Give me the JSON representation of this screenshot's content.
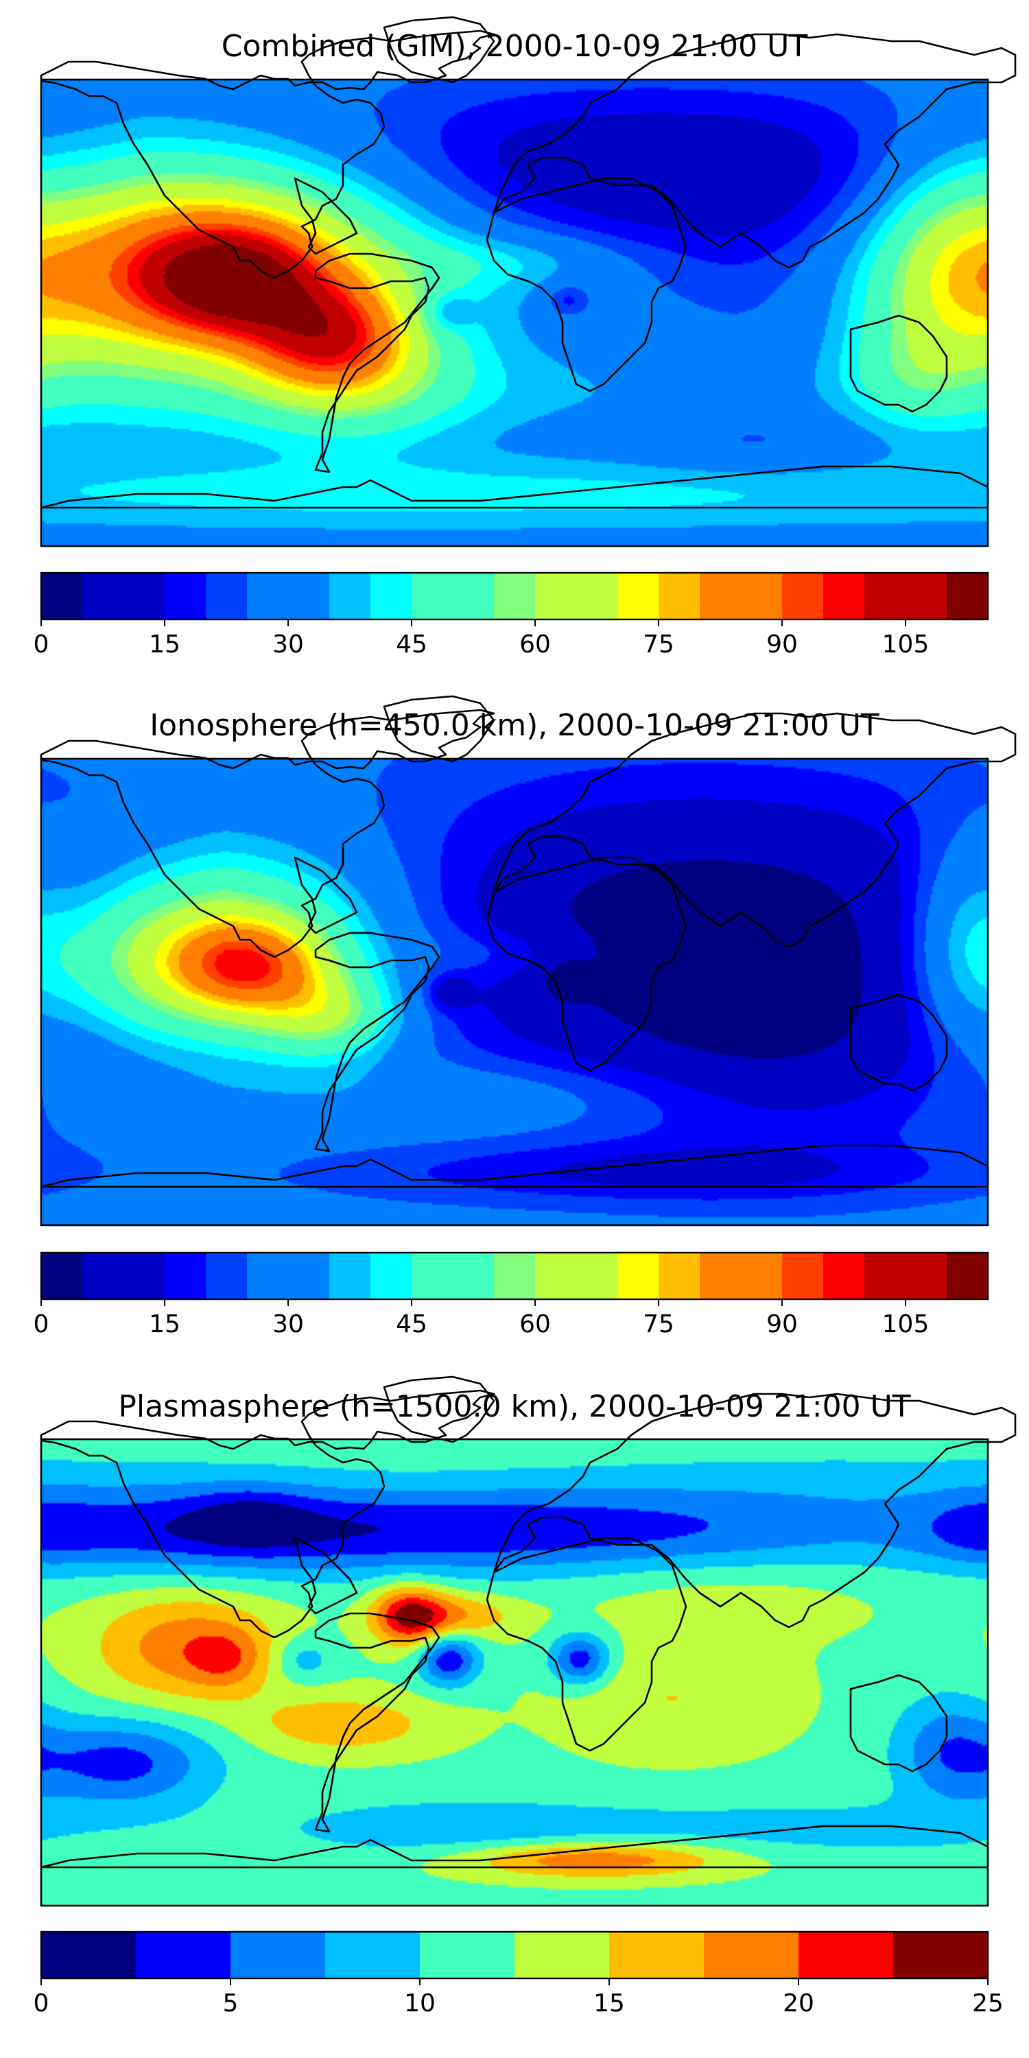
{
  "panels": [
    {
      "id": "combined",
      "title": "Combined (GIM), 2000-10-09 21:00 UT",
      "field_type": "map",
      "colorbar": {
        "min": 0,
        "max": 115,
        "step": 5,
        "ticks": [
          0,
          15,
          30,
          45,
          60,
          75,
          90,
          105
        ],
        "tick_labels": [
          "0",
          "15",
          "30",
          "45",
          "60",
          "75",
          "90",
          "105"
        ]
      },
      "background_level": 30,
      "blobs": [
        {
          "lon": -140,
          "lat": 12,
          "sx": 60,
          "sy": 30,
          "a": 45
        },
        {
          "lon": -108,
          "lat": 12,
          "sx": 22,
          "sy": 14,
          "a": 40
        },
        {
          "lon": -70,
          "lat": -8,
          "sx": 22,
          "sy": 15,
          "a": 38
        },
        {
          "lon": -95,
          "lat": 30,
          "sx": 55,
          "sy": 25,
          "a": 25
        },
        {
          "lon": -60,
          "lat": -25,
          "sx": 30,
          "sy": 18,
          "a": 20
        },
        {
          "lon": 40,
          "lat": 55,
          "sx": 100,
          "sy": 25,
          "a": -22
        },
        {
          "lon": 100,
          "lat": 10,
          "sx": 30,
          "sy": 35,
          "a": -8
        },
        {
          "lon": -25,
          "lat": 0,
          "sx": 6,
          "sy": 5,
          "a": -12
        },
        {
          "lon": 20,
          "lat": 5,
          "sx": 6,
          "sy": 5,
          "a": -12
        },
        {
          "lon": 0,
          "lat": 20,
          "sx": 30,
          "sy": 8,
          "a": 10
        },
        {
          "lon": 0,
          "lat": -30,
          "sx": 100,
          "sy": 12,
          "a": 5
        },
        {
          "lon": 150,
          "lat": -25,
          "sx": 20,
          "sy": 15,
          "a": 12
        },
        {
          "lon": 90,
          "lat": -50,
          "sx": 30,
          "sy": 8,
          "a": -6
        },
        {
          "lon": -10,
          "lat": -70,
          "sx": 200,
          "sy": 10,
          "a": 12
        },
        {
          "lon": 165,
          "lat": 20,
          "sx": 20,
          "sy": 30,
          "a": 15
        }
      ]
    },
    {
      "id": "ionosphere",
      "title": "Ionosphere  (h=450.0 km), 2000-10-09 21:00 UT",
      "field_type": "map",
      "colorbar": {
        "min": 0,
        "max": 115,
        "step": 5,
        "ticks": [
          0,
          15,
          30,
          45,
          60,
          75,
          90,
          105
        ],
        "tick_labels": [
          "0",
          "15",
          "30",
          "45",
          "60",
          "75",
          "90",
          "105"
        ]
      },
      "background_level": 28,
      "blobs": [
        {
          "lon": -120,
          "lat": 10,
          "sx": 45,
          "sy": 22,
          "a": 40
        },
        {
          "lon": -100,
          "lat": 10,
          "sx": 20,
          "sy": 12,
          "a": 30
        },
        {
          "lon": -70,
          "lat": -10,
          "sx": 20,
          "sy": 12,
          "a": 25
        },
        {
          "lon": -100,
          "lat": 35,
          "sx": 55,
          "sy": 25,
          "a": 15
        },
        {
          "lon": 70,
          "lat": 25,
          "sx": 100,
          "sy": 40,
          "a": -28
        },
        {
          "lon": 100,
          "lat": -25,
          "sx": 50,
          "sy": 30,
          "a": -12
        },
        {
          "lon": -25,
          "lat": 0,
          "sx": 6,
          "sy": 5,
          "a": -12
        },
        {
          "lon": 20,
          "lat": 5,
          "sx": 6,
          "sy": 5,
          "a": -12
        },
        {
          "lon": 0,
          "lat": 15,
          "sx": 25,
          "sy": 8,
          "a": 8
        },
        {
          "lon": 50,
          "lat": -70,
          "sx": 80,
          "sy": 8,
          "a": -12
        },
        {
          "lon": -20,
          "lat": -40,
          "sx": 80,
          "sy": 10,
          "a": 8
        },
        {
          "lon": 170,
          "lat": 20,
          "sx": 15,
          "sy": 30,
          "a": 15
        }
      ]
    },
    {
      "id": "plasmasphere",
      "title": "Plasmasphere (h=1500.0 km), 2000-10-09 21:00 UT",
      "field_type": "map",
      "colorbar": {
        "min": 0,
        "max": 25,
        "step": 2.5,
        "ticks": [
          0,
          5,
          10,
          15,
          20,
          25
        ],
        "tick_labels": [
          "0",
          "5",
          "10",
          "15",
          "20",
          "25"
        ]
      },
      "background_level": 12,
      "blobs": [
        {
          "lon": -20,
          "lat": 55,
          "sx": 130,
          "sy": 12,
          "a": -9
        },
        {
          "lon": -120,
          "lat": 55,
          "sx": 40,
          "sy": 12,
          "a": -3
        },
        {
          "lon": -100,
          "lat": 60,
          "sx": 15,
          "sy": 8,
          "a": -3
        },
        {
          "lon": 175,
          "lat": 55,
          "sx": 20,
          "sy": 10,
          "a": -4
        },
        {
          "lon": 140,
          "lat": 75,
          "sx": 100,
          "sy": 10,
          "a": -2
        },
        {
          "lon": -125,
          "lat": 10,
          "sx": 25,
          "sy": 15,
          "a": 7
        },
        {
          "lon": -110,
          "lat": 5,
          "sx": 10,
          "sy": 8,
          "a": 4
        },
        {
          "lon": -40,
          "lat": 22,
          "sx": 10,
          "sy": 8,
          "a": 11
        },
        {
          "lon": -20,
          "lat": 22,
          "sx": 15,
          "sy": 6,
          "a": 5
        },
        {
          "lon": -65,
          "lat": -20,
          "sx": 25,
          "sy": 8,
          "a": 5
        },
        {
          "lon": -25,
          "lat": 5,
          "sx": 8,
          "sy": 7,
          "a": -9
        },
        {
          "lon": 25,
          "lat": 5,
          "sx": 8,
          "sy": 7,
          "a": -9
        },
        {
          "lon": -80,
          "lat": 5,
          "sx": 8,
          "sy": 6,
          "a": -4
        },
        {
          "lon": 165,
          "lat": -30,
          "sx": 15,
          "sy": 15,
          "a": -6
        },
        {
          "lon": -150,
          "lat": -35,
          "sx": 25,
          "sy": 12,
          "a": -8
        },
        {
          "lon": 30,
          "lat": -72,
          "sx": 35,
          "sy": 5,
          "a": 8
        },
        {
          "lon": -20,
          "lat": -60,
          "sx": 50,
          "sy": 8,
          "a": -4
        },
        {
          "lon": 120,
          "lat": -60,
          "sx": 60,
          "sy": 8,
          "a": -3
        },
        {
          "lon": 80,
          "lat": 30,
          "sx": 40,
          "sy": 12,
          "a": 2
        },
        {
          "lon": 60,
          "lat": -10,
          "sx": 30,
          "sy": 15,
          "a": 3
        }
      ]
    }
  ],
  "colormap": [
    "#000080",
    "#0000c4",
    "#0000ff",
    "#0040ff",
    "#0080ff",
    "#00c0ff",
    "#00ffff",
    "#40ffbf",
    "#80ff80",
    "#bfff40",
    "#ffff00",
    "#ffbf00",
    "#ff8000",
    "#ff4000",
    "#ff0000",
    "#c00000",
    "#800000"
  ],
  "coastline_color": "#000000"
}
